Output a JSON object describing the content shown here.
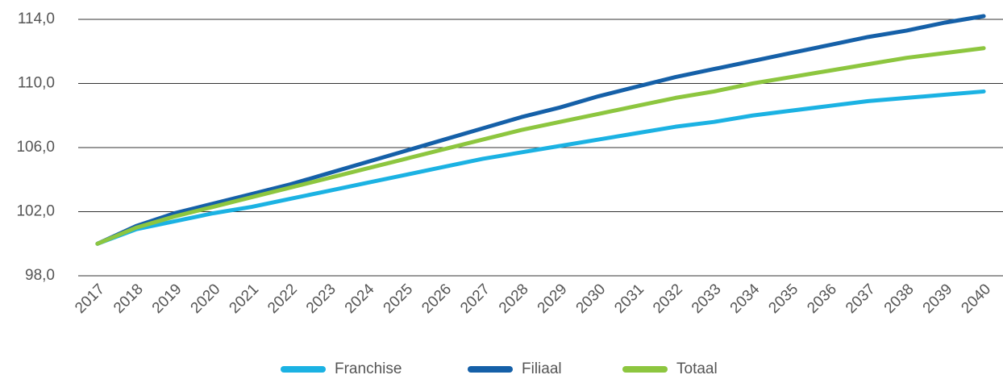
{
  "chart_data": {
    "type": "line",
    "categories": [
      "2017",
      "2018",
      "2019",
      "2020",
      "2021",
      "2022",
      "2023",
      "2024",
      "2025",
      "2026",
      "2027",
      "2028",
      "2029",
      "2030",
      "2031",
      "2032",
      "2033",
      "2034",
      "2035",
      "2036",
      "2037",
      "2038",
      "2039",
      "2040"
    ],
    "series": [
      {
        "name": "Franchise",
        "color": "#1bb2e3",
        "values": [
          100,
          100.9,
          101.4,
          101.9,
          102.3,
          102.8,
          103.3,
          103.8,
          104.3,
          104.8,
          105.3,
          105.7,
          106.1,
          106.5,
          106.9,
          107.3,
          107.6,
          108.0,
          108.3,
          108.6,
          108.9,
          109.1,
          109.3,
          109.5
        ]
      },
      {
        "name": "Filiaal",
        "color": "#1560a8",
        "values": [
          100,
          101.1,
          101.9,
          102.5,
          103.1,
          103.7,
          104.4,
          105.1,
          105.8,
          106.5,
          107.2,
          107.9,
          108.5,
          109.2,
          109.8,
          110.4,
          110.9,
          111.4,
          111.9,
          112.4,
          112.9,
          113.3,
          113.8,
          114.2
        ]
      },
      {
        "name": "Totaal",
        "color": "#8dc63f",
        "values": [
          100,
          101.0,
          101.7,
          102.3,
          102.9,
          103.5,
          104.1,
          104.7,
          105.3,
          105.9,
          106.5,
          107.1,
          107.6,
          108.1,
          108.6,
          109.1,
          109.5,
          110.0,
          110.4,
          110.8,
          111.2,
          111.6,
          111.9,
          112.2
        ]
      }
    ],
    "ylim": [
      98,
      114
    ],
    "yticks": [
      {
        "value": 98,
        "label": "98,0"
      },
      {
        "value": 102,
        "label": "102,0"
      },
      {
        "value": 106,
        "label": "106,0"
      },
      {
        "value": 110,
        "label": "110,0"
      },
      {
        "value": 114,
        "label": "114,0"
      }
    ],
    "grid": true,
    "legend": "bottom"
  }
}
